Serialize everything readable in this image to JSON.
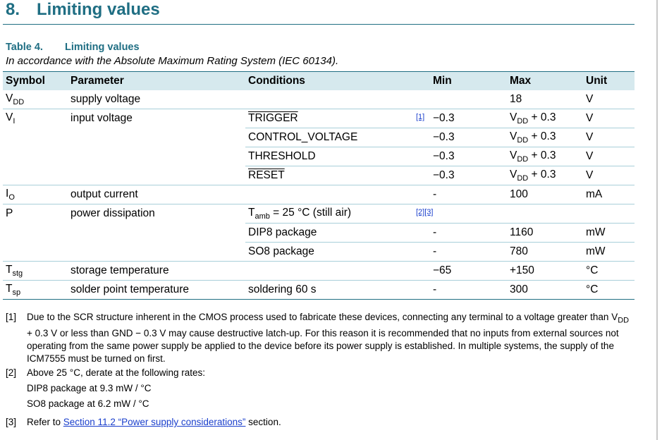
{
  "section": {
    "number": "8.",
    "title": "Limiting values"
  },
  "table": {
    "label": "Table 4.",
    "title": "Limiting values",
    "subtitle": "In accordance with the Absolute Maximum Rating System (IEC 60134).",
    "headers": {
      "symbol": "Symbol",
      "parameter": "Parameter",
      "conditions": "Conditions",
      "min": "Min",
      "max": "Max",
      "unit": "Unit"
    },
    "vdd": {
      "sym": "V",
      "sub": "DD",
      "param": "supply voltage",
      "max": "18",
      "unit": "V"
    },
    "vi": {
      "sym": "V",
      "sub": "I",
      "param": "input voltage",
      "ref": "[1]",
      "rows": [
        {
          "cond": "TRIGGER",
          "min": "−0.3",
          "max_sym": "V",
          "max_sub": "DD",
          "max_val": " + 0.3",
          "unit": "V"
        },
        {
          "cond": "CONTROL_VOLTAGE",
          "min": "−0.3",
          "max_sym": "V",
          "max_sub": "DD",
          "max_val": " + 0.3",
          "unit": "V"
        },
        {
          "cond": "THRESHOLD",
          "min": "−0.3",
          "max_sym": "V",
          "max_sub": "DD",
          "max_val": " + 0.3",
          "unit": "V"
        },
        {
          "cond": "RESET",
          "min": "−0.3",
          "max_sym": "V",
          "max_sub": "DD",
          "max_val": " + 0.3",
          "unit": "V"
        }
      ]
    },
    "io": {
      "sym": "I",
      "sub": "O",
      "param": "output current",
      "min": "-",
      "max": "100",
      "unit": "mA"
    },
    "p": {
      "sym": "P",
      "param": "power dissipation",
      "cond_sym": "T",
      "cond_sub": "amb",
      "cond_rest": " = 25 °C (still air)",
      "ref1": "[2]",
      "ref2": "[3]",
      "dip": {
        "cond": "DIP8 package",
        "min": "-",
        "max": "1160",
        "unit": "mW"
      },
      "so": {
        "cond": "SO8 package",
        "min": "-",
        "max": "780",
        "unit": "mW"
      }
    },
    "tstg": {
      "sym": "T",
      "sub": "stg",
      "param": "storage temperature",
      "min": "−65",
      "max": "+150",
      "unit": "°C"
    },
    "tsp": {
      "sym": "T",
      "sub": "sp",
      "param": "solder point temperature",
      "cond": "soldering 60 s",
      "min": "-",
      "max": "300",
      "unit": "°C"
    }
  },
  "footnotes": {
    "f1": {
      "mark": "[1]",
      "a": "Due to the SCR structure inherent in the CMOS process used to fabricate these devices, connecting any terminal to a voltage greater than V",
      "sub": "DD",
      "b": " + 0.3 V or less than GND − 0.3 V may cause destructive latch-up. For this reason it is recommended that no inputs from external sources not operating from the same power supply be applied to the device before its power supply is established. In multiple systems, the supply of the ICM7555 must be turned on first."
    },
    "f2": {
      "mark": "[2]",
      "line1": "Above 25 °C, derate at the following rates:",
      "line2": "DIP8 package at 9.3 mW / °C",
      "line3": "SO8 package at 6.2 mW / °C"
    },
    "f3": {
      "mark": "[3]",
      "pre": "Refer to ",
      "link": "Section 11.2 “Power supply considerations”",
      "post": " section."
    }
  }
}
